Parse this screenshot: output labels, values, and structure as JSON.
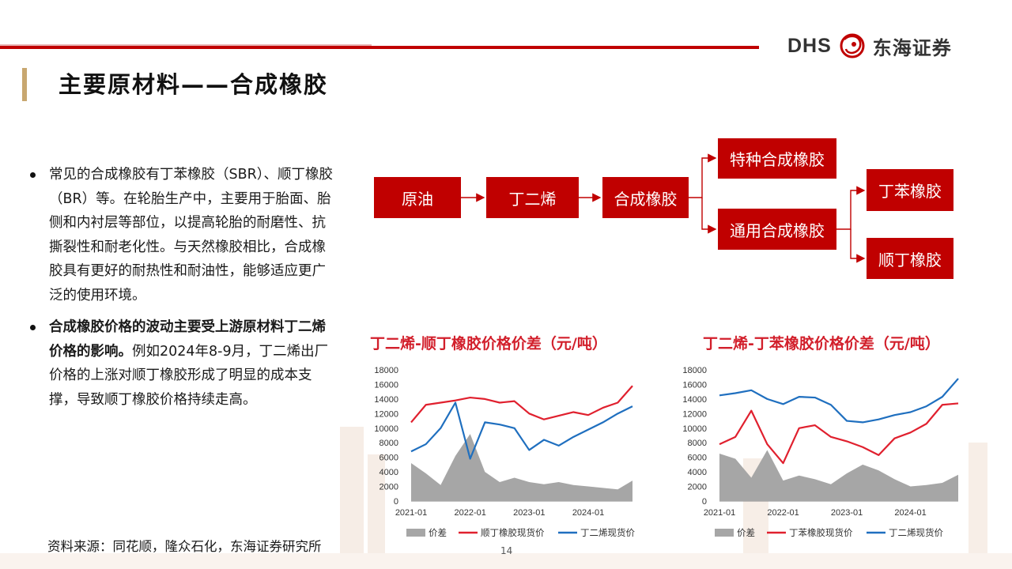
{
  "brand": {
    "latin": "DHS",
    "chinese": "东海证券"
  },
  "title": "主要原材料——合成橡胶",
  "bullets": [
    {
      "bold": "",
      "text": "常见的合成橡胶有丁苯橡胶（SBR）、顺丁橡胶（BR）等。在轮胎生产中，主要用于胎面、胎侧和内衬层等部位，以提高轮胎的耐磨性、抗撕裂性和耐老化性。与天然橡胶相比，合成橡胶具有更好的耐热性和耐油性，能够适应更广泛的使用环境。"
    },
    {
      "bold": "合成橡胶价格的波动主要受上游原材料丁二烯价格的影响。",
      "text": "例如2024年8-9月，丁二烯出厂价格的上涨对顺丁橡胶形成了明显的成本支撑，导致顺丁橡胶价格持续走高。"
    }
  ],
  "flow": {
    "crude": "原油",
    "butadiene": "丁二烯",
    "synthetic": "合成橡胶",
    "special": "特种合成橡胶",
    "general": "通用合成橡胶",
    "sbr": "丁苯橡胶",
    "br": "顺丁橡胶"
  },
  "source": "资料来源：同花顺，隆众石化，东海证券研究所",
  "page_number": "14",
  "colors": {
    "accent_red": "#c00000",
    "title_red": "#d21f2b",
    "gold": "#c8a770",
    "series_red": "#e0202e",
    "series_blue": "#1f6fbf",
    "area_gray": "#a6a6a6"
  },
  "chart_data": [
    {
      "type": "line",
      "title": "丁二烯-顺丁橡胶价格价差（元/吨）",
      "x": [
        "2021-01",
        "2021-04",
        "2021-07",
        "2021-10",
        "2022-01",
        "2022-04",
        "2022-07",
        "2022-10",
        "2023-01",
        "2023-04",
        "2023-07",
        "2023-10",
        "2024-01",
        "2024-04",
        "2024-07",
        "2024-10"
      ],
      "x_ticks": [
        "2021-01",
        "2022-01",
        "2023-01",
        "2024-01"
      ],
      "y_ticks": [
        "0",
        "2000",
        "4000",
        "6000",
        "8000",
        "10000",
        "12000",
        "14000",
        "16000",
        "18000"
      ],
      "ylim": [
        0,
        18000
      ],
      "legend_position": "bottom",
      "series": [
        {
          "name": "价差",
          "kind": "area",
          "values": [
            5200,
            3800,
            2200,
            6200,
            9200,
            4000,
            2600,
            3200,
            2600,
            2300,
            2600,
            2200,
            2000,
            1800,
            1600,
            2800
          ]
        },
        {
          "name": "顺丁橡胶现货价",
          "kind": "line",
          "values": [
            10800,
            13200,
            13500,
            13800,
            14200,
            14000,
            13500,
            13700,
            12000,
            11200,
            11700,
            12200,
            11800,
            12800,
            13500,
            15800
          ]
        },
        {
          "name": "丁二烯现货价",
          "kind": "line",
          "values": [
            6800,
            7800,
            10000,
            13500,
            5800,
            10800,
            10500,
            10000,
            7000,
            8400,
            7600,
            8800,
            9800,
            10800,
            12000,
            13000
          ]
        }
      ]
    },
    {
      "type": "line",
      "title": "丁二烯-丁苯橡胶价格价差（元/吨）",
      "x": [
        "2021-01",
        "2021-04",
        "2021-07",
        "2021-10",
        "2022-01",
        "2022-04",
        "2022-07",
        "2022-10",
        "2023-01",
        "2023-04",
        "2023-07",
        "2023-10",
        "2024-01",
        "2024-04",
        "2024-07",
        "2024-10"
      ],
      "x_ticks": [
        "2021-01",
        "2022-01",
        "2023-01",
        "2024-01"
      ],
      "y_ticks": [
        "0",
        "2000",
        "4000",
        "6000",
        "8000",
        "10000",
        "12000",
        "14000",
        "16000",
        "18000"
      ],
      "ylim": [
        0,
        18000
      ],
      "legend_position": "bottom",
      "series": [
        {
          "name": "价差",
          "kind": "area",
          "values": [
            6500,
            5800,
            3200,
            7000,
            2800,
            3500,
            3000,
            2300,
            3800,
            5000,
            4200,
            3000,
            2000,
            2200,
            2500,
            3600
          ]
        },
        {
          "name": "丁苯橡胶现货价",
          "kind": "line",
          "values": [
            7800,
            8800,
            12400,
            7800,
            5200,
            10000,
            10400,
            8800,
            8200,
            7400,
            6300,
            8600,
            9400,
            10600,
            13200,
            13400
          ]
        },
        {
          "name": "丁二烯现货价",
          "kind": "line",
          "values": [
            14500,
            14800,
            15200,
            14000,
            13300,
            14300,
            14200,
            13200,
            11000,
            10800,
            11200,
            11800,
            12200,
            13000,
            14300,
            16800
          ]
        }
      ]
    }
  ]
}
